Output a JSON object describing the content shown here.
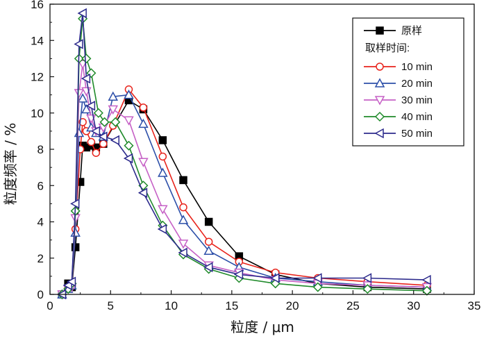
{
  "chart_data": {
    "type": "line",
    "title": "",
    "xlabel": "粒度 / μm",
    "ylabel": "粒度频率 / %",
    "xlim": [
      0,
      35
    ],
    "ylim": [
      0,
      16
    ],
    "xticks": [
      0,
      5,
      10,
      15,
      20,
      25,
      30,
      35
    ],
    "yticks": [
      0,
      2,
      4,
      6,
      8,
      10,
      12,
      14,
      16
    ],
    "legend_position": "top-right",
    "legend_subtitle": "取样时间:",
    "series": [
      {
        "name": "原样",
        "color": "#000000",
        "marker": "square-filled",
        "x": [
          1.0,
          1.5,
          1.8,
          2.1,
          2.5,
          2.7,
          3.0,
          3.4,
          3.8,
          4.4,
          6.5,
          7.7,
          9.3,
          11.0,
          13.1,
          15.6,
          18.6,
          22.1,
          26.2,
          31.1
        ],
        "y": [
          0.0,
          0.6,
          0.4,
          2.6,
          6.2,
          8.2,
          8.1,
          8.2,
          8.1,
          8.3,
          10.7,
          10.2,
          8.5,
          6.3,
          4.0,
          2.1,
          1.1,
          0.6,
          0.4,
          0.3
        ]
      },
      {
        "name": "10 min",
        "color": "#e8231b",
        "marker": "circle-open",
        "x": [
          1.0,
          1.5,
          1.8,
          2.1,
          2.5,
          2.7,
          3.0,
          3.4,
          3.8,
          4.4,
          5.2,
          6.5,
          7.7,
          9.3,
          11.0,
          13.1,
          15.6,
          18.6,
          22.1,
          26.2,
          31.1
        ],
        "y": [
          0.0,
          0.4,
          0.5,
          3.6,
          8.0,
          9.5,
          9.0,
          8.4,
          7.8,
          8.3,
          9.3,
          11.3,
          10.3,
          7.6,
          4.8,
          2.9,
          1.8,
          1.2,
          0.9,
          0.7,
          0.5
        ]
      },
      {
        "name": "20 min",
        "color": "#2b4ea8",
        "marker": "triangle-up-open",
        "x": [
          1.0,
          1.5,
          1.8,
          2.1,
          2.4,
          2.7,
          3.0,
          3.4,
          3.8,
          4.4,
          5.2,
          6.5,
          7.7,
          9.3,
          11.0,
          13.1,
          15.6,
          18.6,
          22.1,
          26.2,
          31.1
        ],
        "y": [
          0.0,
          0.3,
          0.5,
          3.4,
          8.9,
          10.8,
          10.2,
          9.2,
          8.9,
          8.7,
          10.9,
          11.0,
          9.4,
          6.7,
          4.1,
          2.4,
          1.5,
          0.9,
          0.7,
          0.5,
          0.4
        ]
      },
      {
        "name": "30 min",
        "color": "#c661c6",
        "marker": "triangle-down-open",
        "x": [
          1.0,
          1.5,
          1.8,
          2.1,
          2.4,
          2.7,
          3.0,
          3.4,
          3.8,
          4.4,
          5.2,
          6.5,
          7.7,
          9.3,
          11.0,
          13.1,
          15.6,
          18.6,
          22.1,
          26.2,
          31.1
        ],
        "y": [
          0.0,
          0.3,
          0.4,
          4.2,
          11.1,
          12.7,
          11.2,
          9.7,
          9.0,
          9.2,
          10.2,
          9.6,
          7.3,
          4.7,
          2.8,
          1.6,
          1.2,
          0.8,
          0.6,
          0.5,
          0.4
        ]
      },
      {
        "name": "40 min",
        "color": "#1f8a2a",
        "marker": "diamond-open",
        "x": [
          1.0,
          1.5,
          1.8,
          2.1,
          2.4,
          2.7,
          3.0,
          3.4,
          4.0,
          4.5,
          5.4,
          6.5,
          7.7,
          9.3,
          11.0,
          13.1,
          15.6,
          18.6,
          22.1,
          26.2,
          31.1
        ],
        "y": [
          0.0,
          0.3,
          0.6,
          4.6,
          13.0,
          15.2,
          13.0,
          12.2,
          10.0,
          9.5,
          9.5,
          8.2,
          6.0,
          3.8,
          2.2,
          1.4,
          0.9,
          0.6,
          0.4,
          0.3,
          0.2
        ]
      },
      {
        "name": "50 min",
        "color": "#2c2a8c",
        "marker": "triangle-left-open",
        "x": [
          1.0,
          1.5,
          1.8,
          2.1,
          2.4,
          2.7,
          3.0,
          3.4,
          3.8,
          4.4,
          5.4,
          6.5,
          7.7,
          9.3,
          11.0,
          13.1,
          15.6,
          18.6,
          22.1,
          26.2,
          31.1
        ],
        "y": [
          0.0,
          0.5,
          0.7,
          5.0,
          13.8,
          15.5,
          11.9,
          10.4,
          9.0,
          8.7,
          8.5,
          7.5,
          5.6,
          3.6,
          2.3,
          1.5,
          1.1,
          0.9,
          0.9,
          0.9,
          0.8
        ]
      }
    ]
  }
}
